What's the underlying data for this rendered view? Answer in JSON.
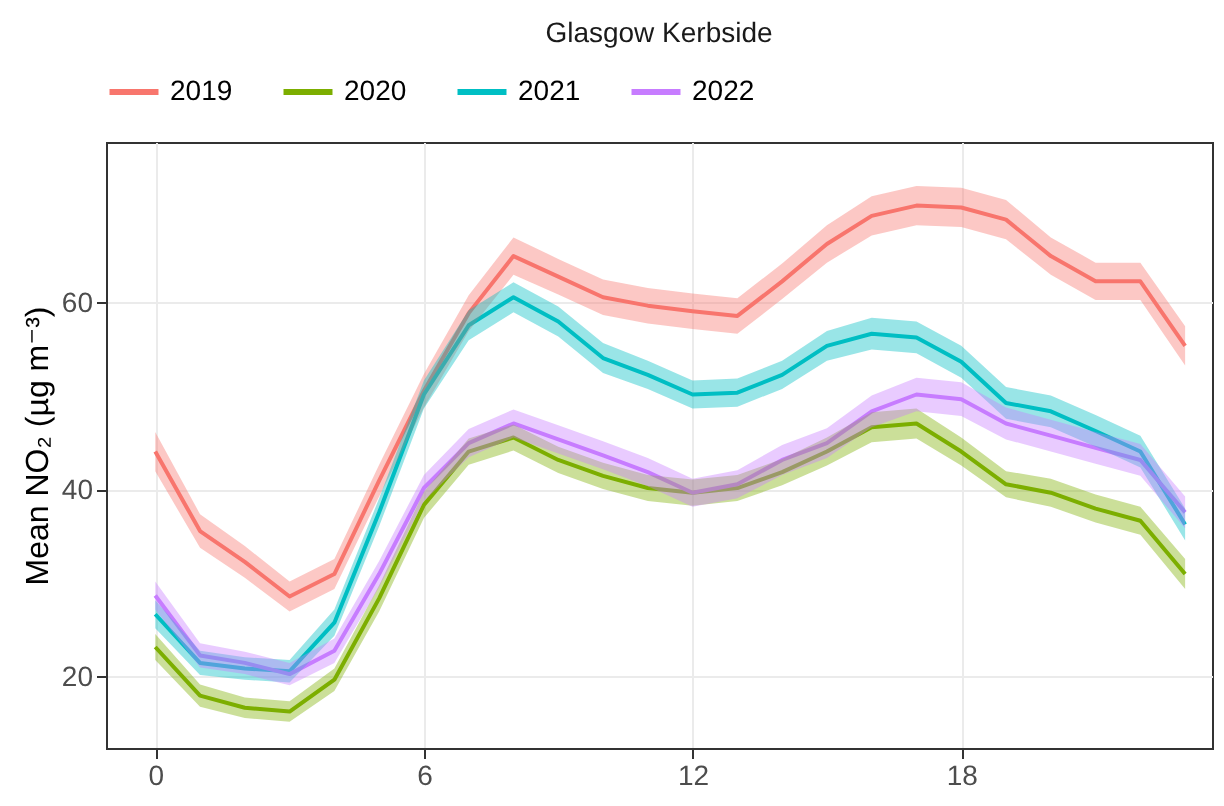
{
  "chart_data": {
    "type": "line",
    "title": "Glasgow Kerbside",
    "ylabel": "Mean NO₂ (µg m⁻³)",
    "x": [
      0,
      1,
      2,
      3,
      4,
      5,
      6,
      7,
      8,
      9,
      10,
      11,
      12,
      13,
      14,
      15,
      16,
      17,
      18,
      19,
      20,
      21,
      22,
      23
    ],
    "xlim": [
      -1.1,
      23.6
    ],
    "xticks": [
      0,
      6,
      12,
      18
    ],
    "ylim": [
      12.4,
      77.2
    ],
    "yticks": [
      20,
      40,
      60
    ],
    "grid": true,
    "legend": "top",
    "line_style": "solid",
    "series": [
      {
        "name": "2019",
        "color": "#f8766d",
        "values": [
          44.1,
          35.6,
          32.3,
          28.6,
          31,
          41,
          50.6,
          58.9,
          65,
          62.8,
          60.6,
          59.7,
          59.1,
          58.6,
          62.3,
          66.3,
          69.3,
          70.4,
          70.2,
          68.9,
          65,
          62.3,
          62.3,
          55.4
        ],
        "lower": [
          42,
          33.8,
          30.6,
          27,
          29.4,
          39.3,
          48.8,
          57,
          63,
          60.9,
          58.7,
          57.8,
          57.2,
          56.7,
          60.4,
          64.3,
          67.2,
          68.3,
          68.1,
          66.8,
          63,
          60.3,
          60.3,
          53.3
        ],
        "upper": [
          46.2,
          37.4,
          34,
          30.2,
          32.6,
          42.7,
          52.4,
          60.8,
          67,
          64.7,
          62.5,
          61.6,
          61,
          60.5,
          64.2,
          68.3,
          71.4,
          72.5,
          72.3,
          71,
          67,
          64.3,
          64.3,
          57.5
        ]
      },
      {
        "name": "2020",
        "color": "#7cae00",
        "values": [
          23.2,
          18,
          16.7,
          16.3,
          19.7,
          28.4,
          38.4,
          44.1,
          45.6,
          43.2,
          41.5,
          40.2,
          39.7,
          40.2,
          41.9,
          44.1,
          46.7,
          47.1,
          44.1,
          40.6,
          39.7,
          38,
          36.7,
          31
        ],
        "lower": [
          21.8,
          16.8,
          15.6,
          15.2,
          18.5,
          27,
          37,
          42.7,
          44.2,
          41.8,
          40.1,
          38.8,
          38.3,
          38.8,
          40.5,
          42.6,
          45.1,
          45.5,
          42.6,
          39.2,
          38.2,
          36.5,
          35.2,
          29.4
        ],
        "upper": [
          24.6,
          19.2,
          17.8,
          17.4,
          20.9,
          29.8,
          39.8,
          45.5,
          47,
          44.6,
          42.9,
          41.6,
          41.1,
          41.6,
          43.3,
          45.6,
          48.3,
          48.7,
          45.6,
          42,
          41.2,
          39.5,
          38.2,
          32.6
        ]
      },
      {
        "name": "2021",
        "color": "#00bfc4",
        "values": [
          26.7,
          21.5,
          20.9,
          20.6,
          25.8,
          37.6,
          50.2,
          57.6,
          60.6,
          58,
          54.1,
          52.3,
          50.2,
          50.4,
          52.3,
          55.4,
          56.7,
          56.3,
          53.7,
          49.3,
          48.4,
          46.3,
          44.1,
          36.3
        ],
        "lower": [
          25.2,
          20.2,
          19.7,
          19.4,
          24.4,
          36.1,
          48.7,
          56,
          59,
          56.4,
          52.5,
          50.8,
          48.7,
          48.9,
          50.8,
          53.8,
          55,
          54.6,
          52,
          47.6,
          46.7,
          44.6,
          42.4,
          34.6
        ],
        "upper": [
          28.2,
          22.8,
          22.1,
          21.8,
          27.2,
          39.1,
          51.7,
          59.2,
          62.2,
          59.6,
          55.7,
          53.8,
          51.7,
          51.9,
          53.8,
          57,
          58.4,
          58,
          55.4,
          51,
          50.1,
          48,
          45.8,
          38
        ]
      },
      {
        "name": "2022",
        "color": "#c77cff",
        "values": [
          28.7,
          22.3,
          21.5,
          20.3,
          22.8,
          31,
          40.2,
          45,
          47.1,
          45.4,
          43.7,
          41.9,
          39.7,
          40.6,
          43.2,
          45,
          48.4,
          50.2,
          49.7,
          47.1,
          45.8,
          44.5,
          43.2,
          37.6
        ],
        "lower": [
          27.2,
          21,
          20.3,
          19.1,
          21.5,
          29.6,
          38.8,
          43.5,
          45.6,
          43.9,
          42.2,
          40.4,
          38.2,
          39.1,
          41.6,
          43.4,
          46.7,
          48.4,
          47.9,
          45.4,
          44.1,
          42.8,
          41.5,
          35.9
        ],
        "upper": [
          30.2,
          23.6,
          22.7,
          21.5,
          24.1,
          32.4,
          41.6,
          46.5,
          48.6,
          46.9,
          45.2,
          43.4,
          41.2,
          42.1,
          44.8,
          46.6,
          50.1,
          52,
          51.5,
          48.8,
          47.5,
          46.2,
          44.9,
          39.3
        ]
      }
    ]
  }
}
